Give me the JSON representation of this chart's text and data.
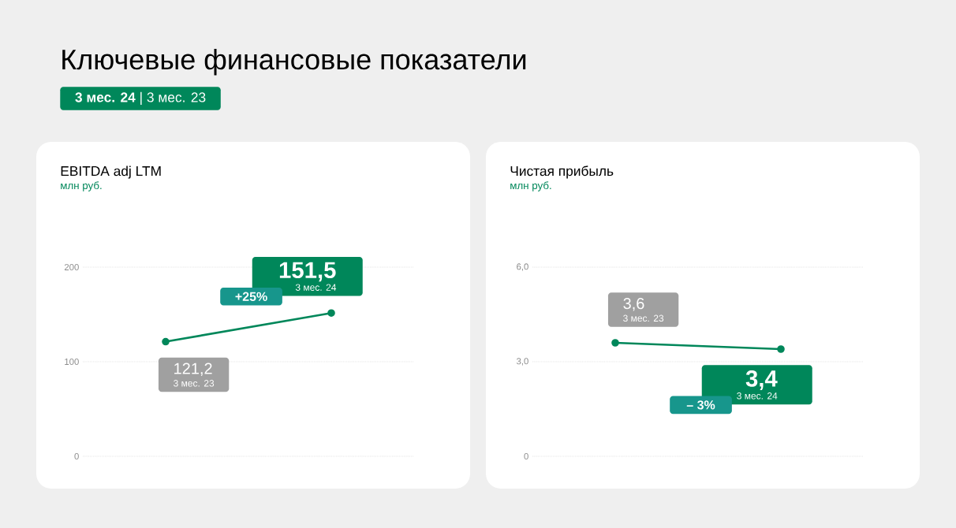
{
  "chart_data": [
    {
      "type": "line",
      "title": "EBITDA adj LTM",
      "subtitle": "млн руб.",
      "categories": [
        null,
        null
      ],
      "series": [
        {
          "color": "#00875a",
          "values": [
            121.2,
            151.5
          ],
          "value_labels": [
            "121,2",
            "151,5"
          ]
        }
      ],
      "ylim": [
        0,
        200
      ],
      "yticks": [
        0,
        100,
        200
      ],
      "grid": "y",
      "marker": "circle",
      "annotations": [
        "Ключевые финансовые показатели",
        "**3 мес. 24** | 3 мес. 23",
        "3 мес. 23",
        "3 мес. 24",
        "+25%"
      ]
    },
    {
      "type": "line",
      "title": "Чистая прибыль",
      "subtitle": "млн руб.",
      "categories": [
        null,
        null
      ],
      "series": [
        {
          "color": "#00875a",
          "values": [
            3.6,
            3.4
          ],
          "value_labels": [
            "3,6",
            "3,4"
          ]
        }
      ],
      "ylim": [
        0,
        6
      ],
      "yticks": [
        0,
        {
          "value": 3,
          "label": "3,0"
        },
        {
          "value": 6,
          "label": "6,0"
        }
      ],
      "grid": "y",
      "marker": "circle",
      "annotations": [
        "3 мес. 23",
        "3 мес. 24",
        "– 3%"
      ]
    }
  ]
}
